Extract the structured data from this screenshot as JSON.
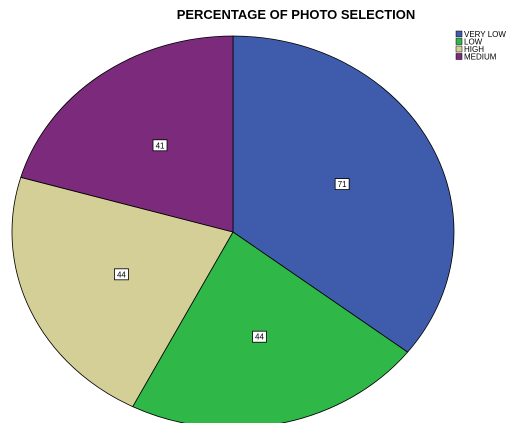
{
  "chart_data": {
    "type": "pie",
    "title": "PERCENTAGE OF PHOTO SELECTION",
    "slices": [
      {
        "label": "VERY LOW",
        "value": 71,
        "color": "#3f5bab"
      },
      {
        "label": "LOW",
        "value": 44,
        "color": "#2fb748"
      },
      {
        "label": "HIGH",
        "value": 44,
        "color": "#d4cf96"
      },
      {
        "label": "MEDIUM",
        "value": 41,
        "color": "#7c2a7c"
      }
    ],
    "legend": {
      "placement": "top-right"
    },
    "data_labels": true
  }
}
